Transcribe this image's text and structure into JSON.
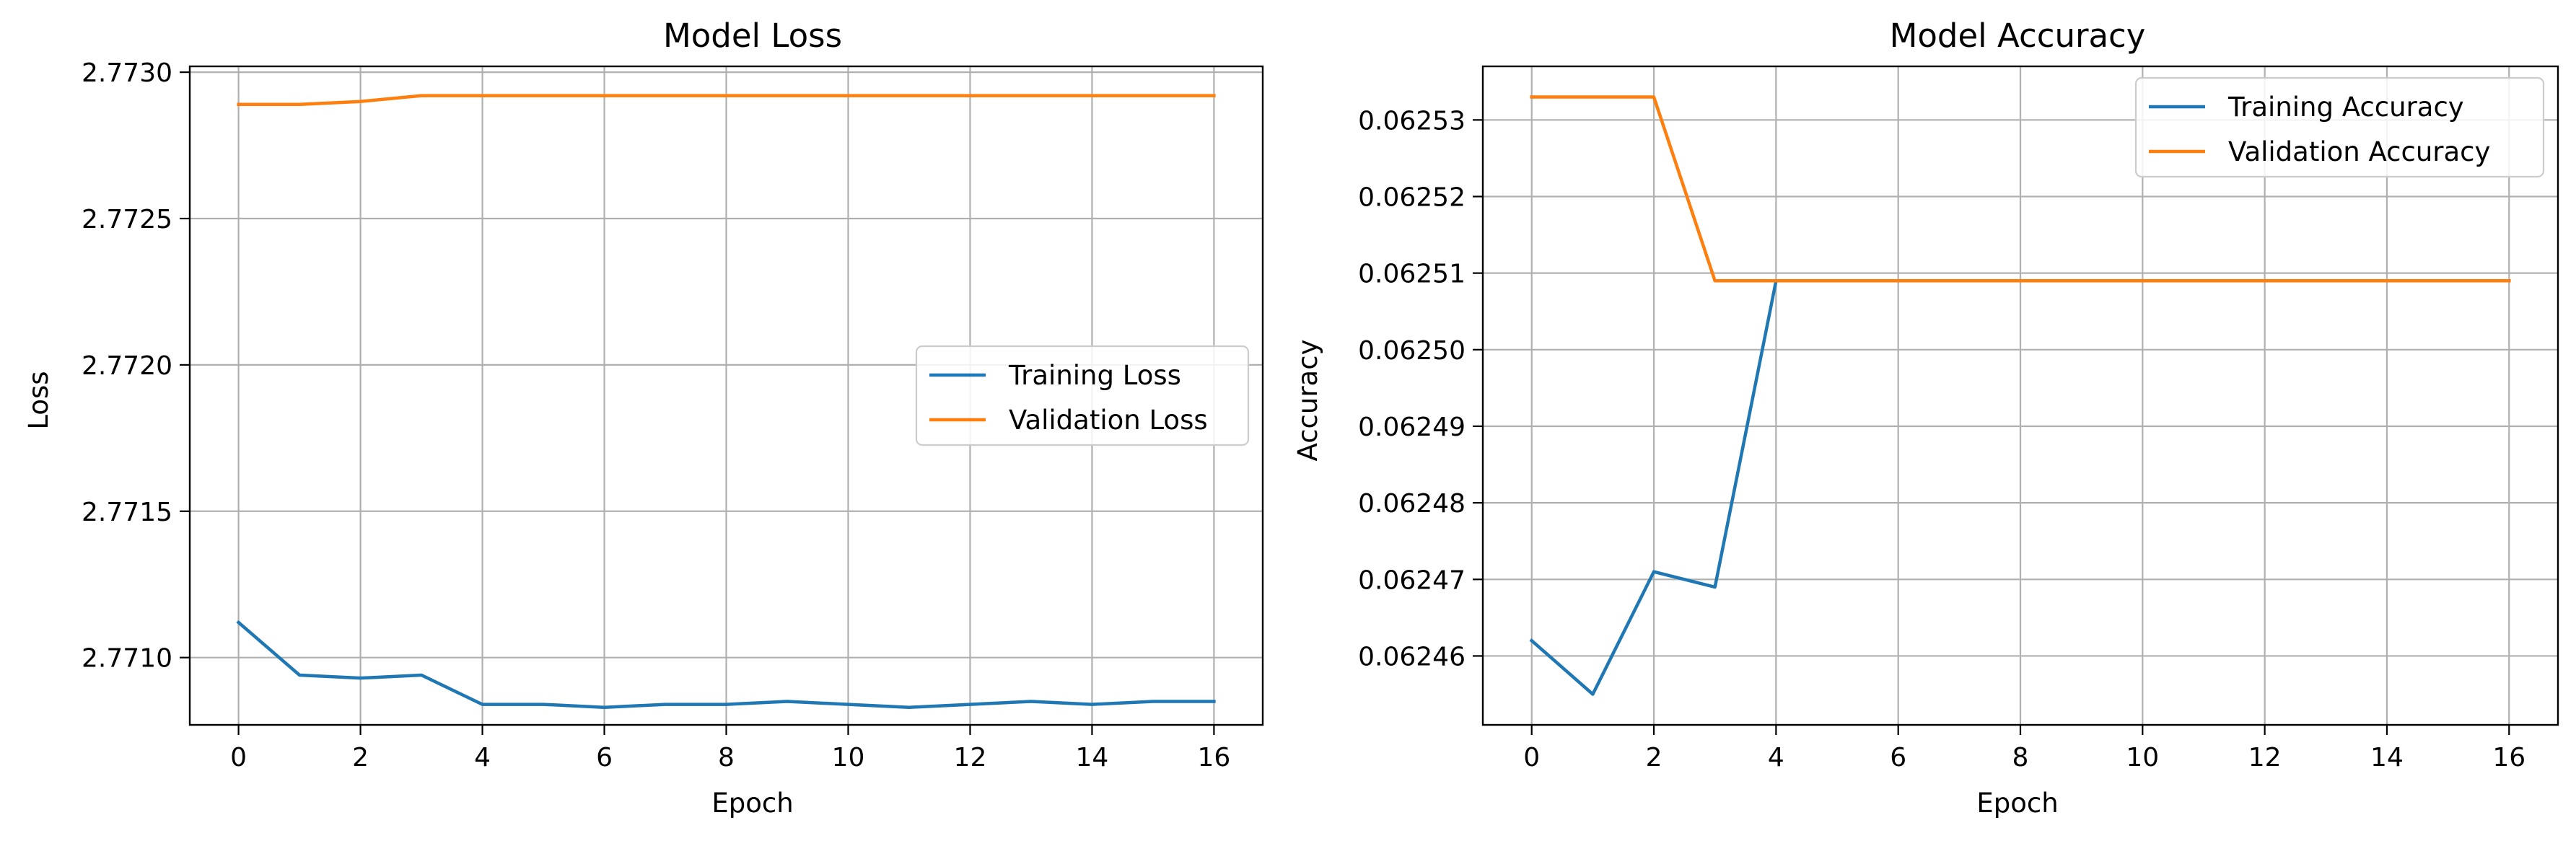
{
  "chart_data": [
    {
      "type": "line",
      "title": "Model Loss",
      "xlabel": "Epoch",
      "ylabel": "Loss",
      "xlim": [
        -0.8,
        16.8
      ],
      "ylim": [
        2.77077,
        2.77302
      ],
      "x_ticks": [
        0,
        2,
        4,
        6,
        8,
        10,
        12,
        14,
        16
      ],
      "y_ticks": [
        2.771,
        2.7715,
        2.772,
        2.7725,
        2.773
      ],
      "y_tick_labels": [
        "2.7710",
        "2.7715",
        "2.7720",
        "2.7725",
        "2.7730"
      ],
      "grid": true,
      "legend_position": "center-right",
      "x": [
        0,
        1,
        2,
        3,
        4,
        5,
        6,
        7,
        8,
        9,
        10,
        11,
        12,
        13,
        14,
        15,
        16
      ],
      "series": [
        {
          "name": "Training Loss",
          "color": "#1f77b4",
          "values": [
            2.77112,
            2.77094,
            2.77093,
            2.77094,
            2.77084,
            2.77084,
            2.77083,
            2.77084,
            2.77084,
            2.77085,
            2.77084,
            2.77083,
            2.77084,
            2.77085,
            2.77084,
            2.77085,
            2.77085
          ]
        },
        {
          "name": "Validation Loss",
          "color": "#ff7f0e",
          "values": [
            2.77289,
            2.77289,
            2.7729,
            2.77292,
            2.77292,
            2.77292,
            2.77292,
            2.77292,
            2.77292,
            2.77292,
            2.77292,
            2.77292,
            2.77292,
            2.77292,
            2.77292,
            2.77292,
            2.77292
          ]
        }
      ]
    },
    {
      "type": "line",
      "title": "Model Accuracy",
      "xlabel": "Epoch",
      "ylabel": "Accuracy",
      "xlim": [
        -0.8,
        16.8
      ],
      "ylim": [
        0.062451,
        0.062537
      ],
      "x_ticks": [
        0,
        2,
        4,
        6,
        8,
        10,
        12,
        14,
        16
      ],
      "y_ticks": [
        0.06246,
        0.06247,
        0.06248,
        0.06249,
        0.0625,
        0.06251,
        0.06252,
        0.06253
      ],
      "y_tick_labels": [
        "0.06246",
        "0.06247",
        "0.06248",
        "0.06249",
        "0.06250",
        "0.06251",
        "0.06252",
        "0.06253"
      ],
      "grid": true,
      "legend_position": "upper-right",
      "x": [
        0,
        1,
        2,
        3,
        4,
        5,
        6,
        7,
        8,
        9,
        10,
        11,
        12,
        13,
        14,
        15,
        16
      ],
      "series": [
        {
          "name": "Training Accuracy",
          "color": "#1f77b4",
          "values": [
            0.062462,
            0.062455,
            0.062471,
            0.062469,
            0.062509,
            0.062509,
            0.062509,
            0.062509,
            0.062509,
            0.062509,
            0.062509,
            0.062509,
            0.062509,
            0.062509,
            0.062509,
            0.062509,
            0.062509
          ]
        },
        {
          "name": "Validation Accuracy",
          "color": "#ff7f0e",
          "values": [
            0.062533,
            0.062533,
            0.062533,
            0.062509,
            0.062509,
            0.062509,
            0.062509,
            0.062509,
            0.062509,
            0.062509,
            0.062509,
            0.062509,
            0.062509,
            0.062509,
            0.062509,
            0.062509,
            0.062509
          ]
        }
      ]
    }
  ]
}
